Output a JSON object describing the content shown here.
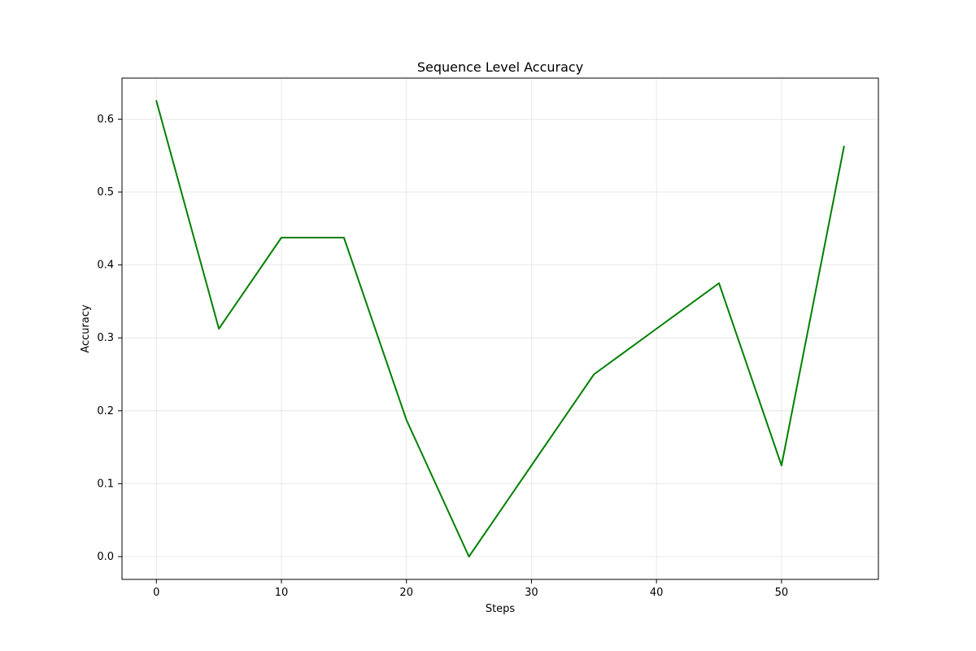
{
  "chart_data": {
    "type": "line",
    "title": "Sequence Level Accuracy",
    "xlabel": "Steps",
    "ylabel": "Accuracy",
    "xlim": [
      -2.75,
      57.75
    ],
    "ylim": [
      -0.03125,
      0.65625
    ],
    "xticks": [
      0,
      10,
      20,
      30,
      40,
      50
    ],
    "yticks": [
      0.0,
      0.1,
      0.2,
      0.3,
      0.4,
      0.5,
      0.6
    ],
    "xtick_labels": [
      "0",
      "10",
      "20",
      "30",
      "40",
      "50"
    ],
    "ytick_labels": [
      "0.0",
      "0.1",
      "0.2",
      "0.3",
      "0.4",
      "0.5",
      "0.6"
    ],
    "grid": true,
    "legend": "none",
    "series": [
      {
        "color": "#008000",
        "x": [
          0,
          5,
          10,
          15,
          20,
          25,
          30,
          35,
          40,
          45,
          50,
          55
        ],
        "y": [
          0.625,
          0.3125,
          0.4375,
          0.4375,
          0.1875,
          0.0,
          0.125,
          0.25,
          0.3125,
          0.375,
          0.125,
          0.5625
        ]
      }
    ]
  }
}
